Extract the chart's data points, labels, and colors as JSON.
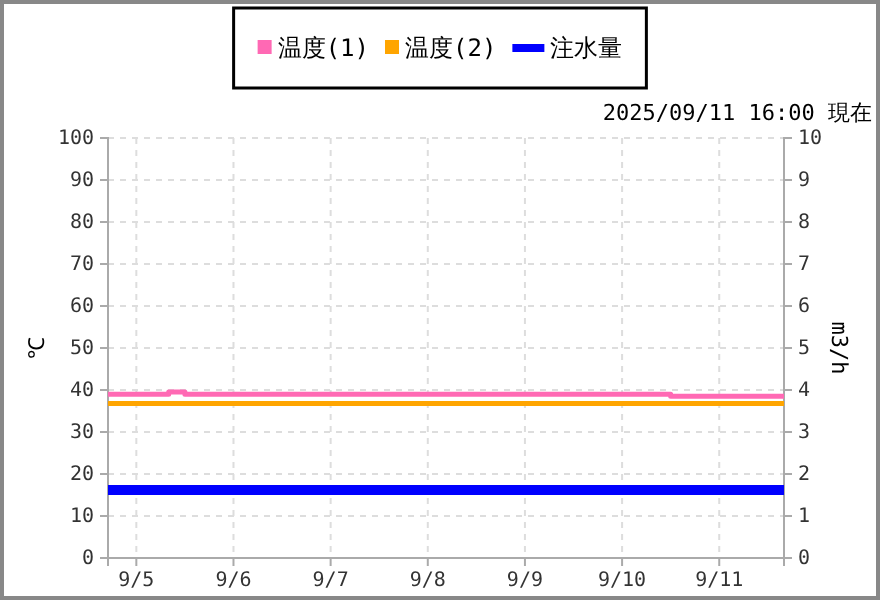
{
  "chart_data": {
    "type": "line",
    "ylabel": "℃",
    "y2label": "m3/h",
    "annotations": [
      "2025/09/11 16:00 現在"
    ],
    "xlim": [
      "2025-09-04T17:00",
      "2025-09-11T16:00"
    ],
    "xticks": [
      {
        "value": "2025-09-05",
        "label": "9/5"
      },
      {
        "value": "2025-09-06",
        "label": "9/6"
      },
      {
        "value": "2025-09-07",
        "label": "9/7"
      },
      {
        "value": "2025-09-08",
        "label": "9/8"
      },
      {
        "value": "2025-09-09",
        "label": "9/9"
      },
      {
        "value": "2025-09-10",
        "label": "9/10"
      },
      {
        "value": "2025-09-11",
        "label": "9/11"
      }
    ],
    "ylim": [
      0,
      100
    ],
    "yticks": [
      0,
      10,
      20,
      30,
      40,
      50,
      60,
      70,
      80,
      90,
      100
    ],
    "y2lim": [
      0,
      10
    ],
    "y2ticks": [
      0,
      1,
      2,
      3,
      4,
      5,
      6,
      7,
      8,
      9,
      10
    ],
    "grid": true,
    "legend": "top",
    "series": [
      {
        "name": "温度(1)",
        "type": "step",
        "color": "#ff69b4",
        "x": [
          "2025-09-04T17:00",
          "2025-09-05T08:00",
          "2025-09-05T12:00",
          "2025-09-10T12:00",
          "2025-09-11T16:00"
        ],
        "values": [
          39,
          39.5,
          39,
          38.5,
          38.5
        ]
      },
      {
        "name": "温度(2)",
        "color": "#ffa500",
        "x": [
          "2025-09-04T17:00",
          "2025-09-11T16:00"
        ],
        "values": [
          36.8,
          36.8
        ]
      },
      {
        "name": "注水量",
        "axis": "y2",
        "color": "#0000ff",
        "x": [
          "2025-09-04T17:00",
          "2025-09-11T16:00"
        ],
        "values": [
          1.62,
          1.62
        ]
      }
    ]
  }
}
